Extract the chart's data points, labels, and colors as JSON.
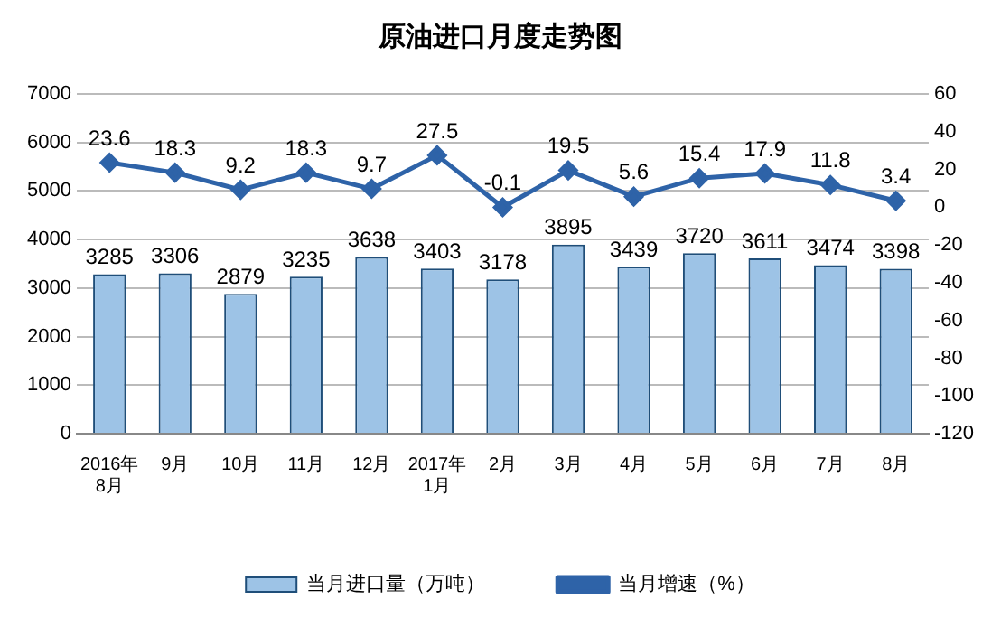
{
  "chart_data": {
    "type": "bar",
    "title": "原油进口月度走势图",
    "categories": [
      "2016年\n8月",
      "9月",
      "10月",
      "11月",
      "12月",
      "2017年\n1月",
      "2月",
      "3月",
      "4月",
      "5月",
      "6月",
      "7月",
      "8月"
    ],
    "series": [
      {
        "name": "当月进口量（万吨）",
        "color": "#9dc3e6",
        "values": [
          3285,
          3306,
          2879,
          3235,
          3638,
          3403,
          3178,
          3895,
          3439,
          3720,
          3611,
          3474,
          3398
        ]
      },
      {
        "name": "当月增速（%）",
        "type": "line",
        "axis": "y2",
        "color": "#2e63a8",
        "values": [
          23.6,
          18.3,
          9.2,
          18.3,
          9.7,
          27.5,
          -0.1,
          19.5,
          5.6,
          15.4,
          17.9,
          11.8,
          3.4
        ]
      }
    ],
    "ylim": [
      0,
      7000
    ],
    "yticks": [
      0,
      1000,
      2000,
      3000,
      4000,
      5000,
      6000,
      7000
    ],
    "y2lim": [
      -120,
      60
    ],
    "y2ticks": [
      -120,
      -100,
      -80,
      -60,
      -40,
      -20,
      0,
      20,
      40,
      60
    ],
    "grid": "y",
    "legend": "bottom",
    "marker": "diamond",
    "line_style": "solid",
    "data_labels": true
  }
}
